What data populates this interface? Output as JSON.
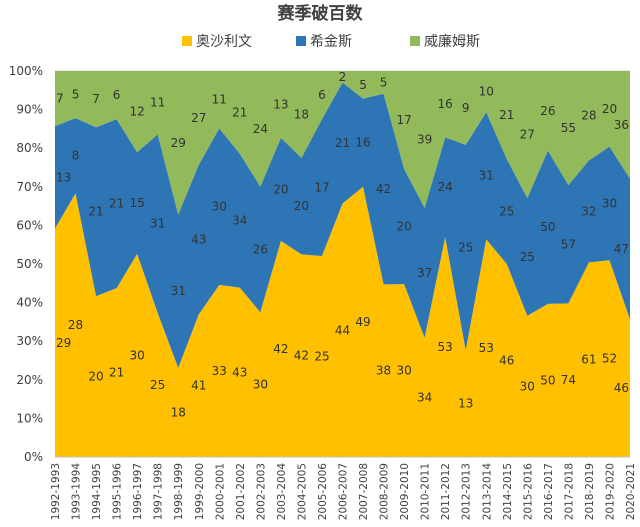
{
  "chart_data": {
    "type": "area",
    "stacked": "percent",
    "title": "赛季破百数",
    "legend_position": "top",
    "ylim": [
      0,
      100
    ],
    "y_ticks": [
      "0%",
      "10%",
      "20%",
      "30%",
      "40%",
      "50%",
      "60%",
      "70%",
      "80%",
      "90%",
      "100%"
    ],
    "categories": [
      "1992-1993",
      "1993-1994",
      "1994-1995",
      "1995-1996",
      "1996-1997",
      "1997-1998",
      "1998-1999",
      "1999-2000",
      "2000-2001",
      "2001-2002",
      "2002-2003",
      "2003-2004",
      "2004-2005",
      "2005-2006",
      "2006-2007",
      "2007-2008",
      "2008-2009",
      "2009-2010",
      "2010-2011",
      "2011-2012",
      "2012-2013",
      "2013-2014",
      "2014-2015",
      "2015-2016",
      "2016-2017",
      "2017-2018",
      "2018-2019",
      "2019-2020",
      "2020-2021"
    ],
    "series": [
      {
        "name": "奥沙利文",
        "color": "#FFC000",
        "values": [
          29,
          28,
          20,
          21,
          30,
          25,
          18,
          41,
          33,
          43,
          30,
          42,
          42,
          25,
          44,
          49,
          38,
          30,
          34,
          53,
          13,
          53,
          46,
          30,
          50,
          74,
          61,
          52,
          46
        ]
      },
      {
        "name": "希金斯",
        "color": "#2E75B6",
        "values": [
          13,
          8,
          21,
          21,
          15,
          31,
          31,
          43,
          30,
          34,
          26,
          20,
          20,
          17,
          21,
          16,
          42,
          20,
          37,
          24,
          25,
          31,
          25,
          25,
          50,
          57,
          32,
          30,
          47
        ]
      },
      {
        "name": "威廉姆斯",
        "color": "#92B95A",
        "values": [
          7,
          5,
          7,
          6,
          12,
          11,
          29,
          27,
          11,
          21,
          24,
          13,
          18,
          6,
          2,
          5,
          5,
          17,
          39,
          16,
          9,
          10,
          21,
          27,
          26,
          55,
          28,
          20,
          36
        ]
      }
    ]
  }
}
